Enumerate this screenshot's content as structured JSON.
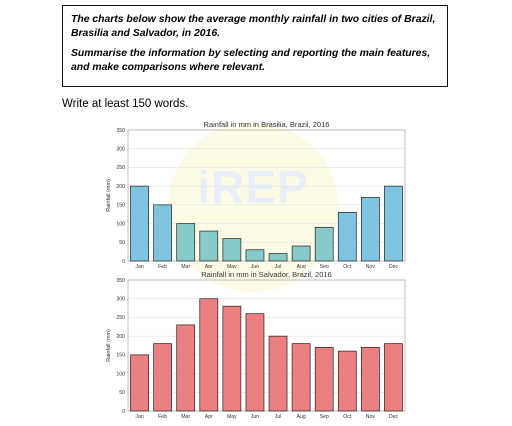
{
  "task": {
    "line1": "The charts below show the average monthly rainfall in two cities of Brazil, Brasilia and Salvador, in 2016.",
    "line2": "Summarise the information by selecting and reporting the main features, and make comparisons where relevant."
  },
  "instruction": "Write at least 150 words.",
  "watermark": "iREP",
  "chart_data": [
    {
      "type": "bar",
      "title": "Rainfall in mm in Brasilia, Brazil, 2016",
      "xlabel": "",
      "ylabel": "Rainfall (mm)",
      "categories": [
        "Jan",
        "Feb",
        "Mar",
        "Apr",
        "May",
        "Jun",
        "Jul",
        "Aug",
        "Sep",
        "Oct",
        "Nov",
        "Dec"
      ],
      "values": [
        200,
        150,
        100,
        80,
        60,
        30,
        20,
        40,
        90,
        130,
        170,
        200
      ],
      "colors": [
        "#7fc4e0",
        "#7fc4e0",
        "#88c9ca",
        "#88c9ca",
        "#88c9ca",
        "#88c9ca",
        "#88c9ca",
        "#88c9ca",
        "#88c9ca",
        "#7fc4e0",
        "#7fc4e0",
        "#7fc4e0"
      ],
      "ylim": [
        0,
        350
      ],
      "yticks": [
        0,
        50,
        100,
        150,
        200,
        250,
        300,
        350
      ],
      "grid": true
    },
    {
      "type": "bar",
      "title": "Rainfall in mm in Salvador, Brazil, 2016",
      "xlabel": "",
      "ylabel": "Rainfall (mm)",
      "categories": [
        "Jan",
        "Feb",
        "Mar",
        "Apr",
        "May",
        "Jun",
        "Jul",
        "Aug",
        "Sep",
        "Oct",
        "Nov",
        "Dec"
      ],
      "values": [
        150,
        180,
        230,
        300,
        280,
        260,
        200,
        180,
        170,
        160,
        170,
        180
      ],
      "colors": [
        "#ec8080",
        "#ec8080",
        "#ec8080",
        "#ec8080",
        "#ec8080",
        "#ec8080",
        "#ec8080",
        "#ec8080",
        "#ec8080",
        "#ec8080",
        "#ec8080",
        "#ec8080"
      ],
      "ylim": [
        0,
        350
      ],
      "yticks": [
        0,
        50,
        100,
        150,
        200,
        250,
        300,
        350
      ],
      "grid": true
    }
  ]
}
